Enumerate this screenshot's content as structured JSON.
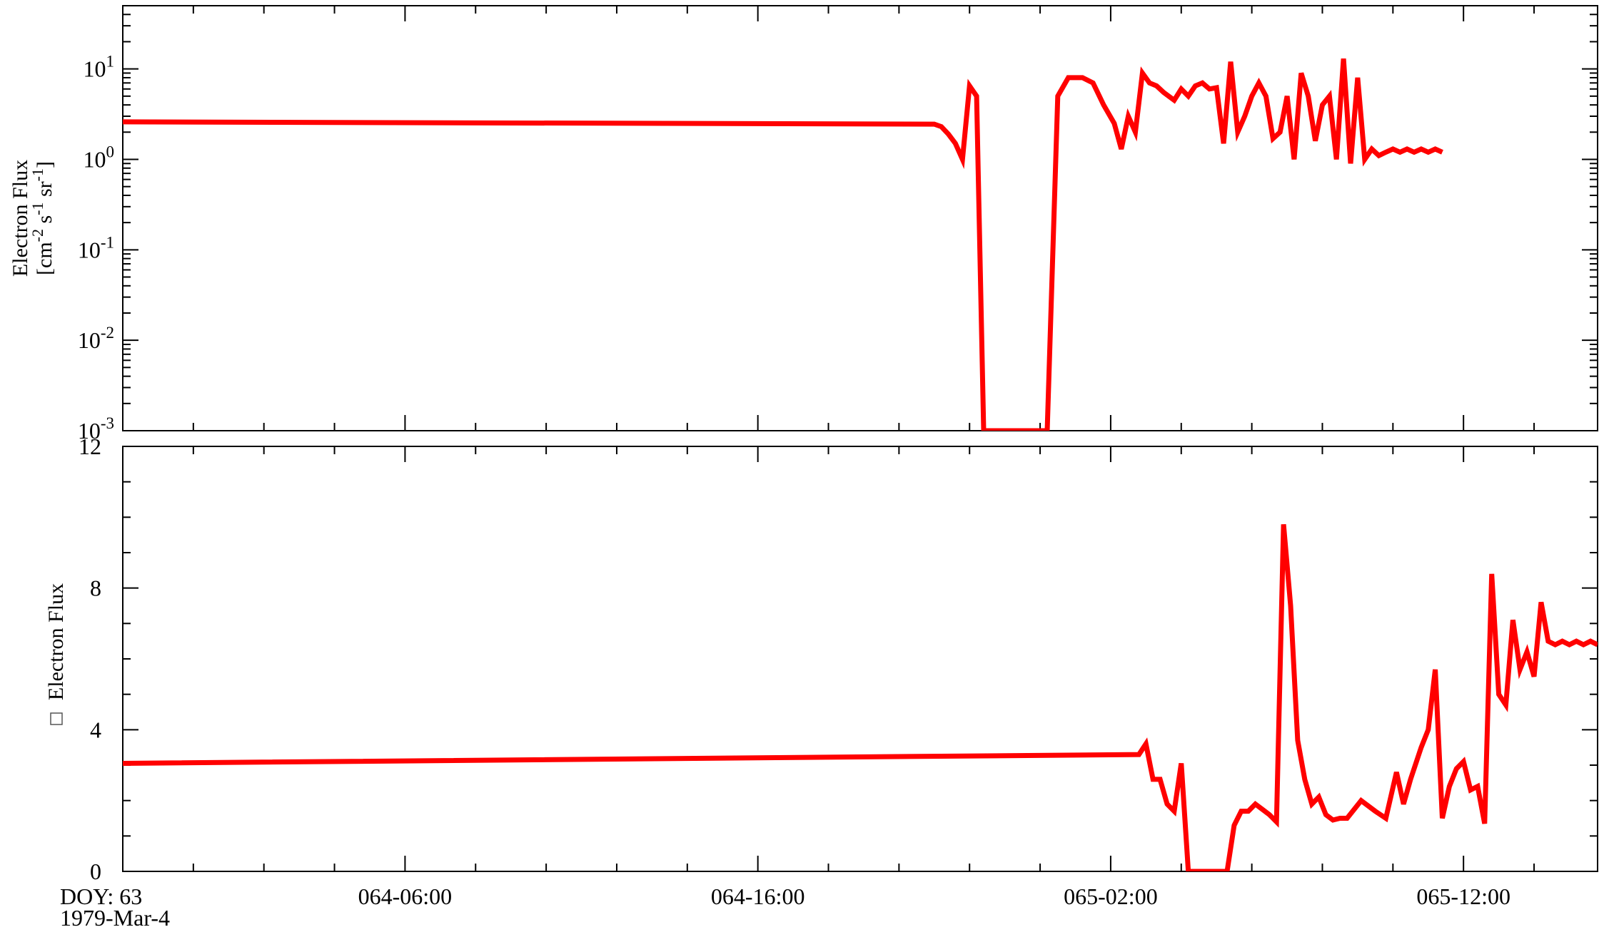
{
  "chart_data": [
    {
      "type": "line",
      "ylabel_line1": "Electron Flux",
      "ylabel_line2_parts": [
        "[cm",
        "-2",
        " s",
        "-1",
        " sr",
        "-1",
        "]"
      ],
      "yscale": "log",
      "ylim": [
        0.001,
        50
      ],
      "ytick_labels": [
        {
          "base": "10",
          "exp": "1"
        },
        {
          "base": "10",
          "exp": "0"
        },
        {
          "base": "10",
          "exp": "-1"
        },
        {
          "base": "10",
          "exp": "-2"
        },
        {
          "base": "10",
          "exp": "-3"
        }
      ],
      "color": "#ff0000",
      "grid": false,
      "series": [
        {
          "x_hours": [
            0,
            23,
            23.2,
            23.4,
            23.6,
            23.8,
            24.0,
            24.2,
            24.4,
            24.5,
            24.8,
            26.0,
            26.2,
            26.5,
            26.8,
            27.2,
            27.5,
            27.8,
            28.1,
            28.3,
            28.5,
            28.7,
            28.9,
            29.1,
            29.3,
            29.5,
            29.8,
            30.0,
            30.2,
            30.4,
            30.6,
            30.8,
            31.0,
            31.2,
            31.4,
            31.6,
            31.8,
            32.0,
            32.2,
            32.4,
            32.6,
            32.8,
            33.0,
            33.2,
            33.4,
            33.6,
            33.8,
            34.0,
            34.2,
            34.4,
            34.6,
            34.8,
            35.0,
            35.2,
            35.4,
            35.6,
            35.8,
            36.0,
            36.2,
            36.4,
            36.6,
            36.8,
            37.0,
            37.2,
            37.4
          ],
          "y": [
            2.6,
            2.45,
            2.3,
            1.9,
            1.5,
            1.0,
            6.5,
            5.0,
            0.001,
            0.001,
            0.001,
            0.001,
            0.001,
            5.0,
            8.0,
            8.0,
            7.0,
            4.0,
            2.5,
            1.3,
            3.0,
            2.0,
            9.0,
            7.0,
            6.5,
            5.5,
            4.5,
            6.0,
            5.0,
            6.5,
            7.0,
            6.0,
            6.2,
            1.5,
            12.0,
            2.0,
            3.0,
            5.0,
            7.0,
            5.0,
            1.7,
            2.0,
            5.0,
            1.0,
            9.0,
            5.0,
            1.6,
            4.0,
            5.0,
            1.0,
            13.0,
            0.9,
            8.0,
            1.0,
            1.3,
            1.1,
            1.2,
            1.3,
            1.2,
            1.3,
            1.2,
            1.3,
            1.2,
            1.3,
            1.2
          ]
        }
      ]
    },
    {
      "type": "line",
      "ylabel": "Electron Flux",
      "ylabel_icon": "missing-glyph-box",
      "ylim": [
        0,
        12
      ],
      "yticks": [
        0,
        4,
        8,
        12
      ],
      "ytick_labels": [
        "0",
        "4",
        "8",
        "12"
      ],
      "xtick_labels": [
        "DOY: 63",
        "064-06:00",
        "064-16:00",
        "065-02:00",
        "065-12:00"
      ],
      "xtick_hours": [
        0,
        8,
        18,
        28,
        38
      ],
      "date_label": "1979-Mar-4",
      "xlim_hours": [
        0,
        41.8
      ],
      "color": "#ff0000",
      "grid": false,
      "series": [
        {
          "x_hours": [
            0,
            28.8,
            29.0,
            29.2,
            29.4,
            29.6,
            29.8,
            30.0,
            30.2,
            30.4,
            31.3,
            31.5,
            31.7,
            31.9,
            32.1,
            32.3,
            32.5,
            32.7,
            32.9,
            33.1,
            33.3,
            33.5,
            33.7,
            33.9,
            34.1,
            34.3,
            34.5,
            34.7,
            35.1,
            35.5,
            35.8,
            36.1,
            36.3,
            36.5,
            36.8,
            37.0,
            37.2,
            37.4,
            37.6,
            37.8,
            38.0,
            38.2,
            38.4,
            38.6,
            38.8,
            39.0,
            39.2,
            39.4,
            39.6,
            39.8,
            40.0,
            40.2,
            40.4,
            40.6,
            40.8,
            41.0,
            41.2,
            41.4,
            41.6,
            41.8
          ],
          "y": [
            3.05,
            3.3,
            3.6,
            2.6,
            2.6,
            1.9,
            1.7,
            3.05,
            0.0,
            0.0,
            0.0,
            1.3,
            1.7,
            1.7,
            1.9,
            1.75,
            1.6,
            1.4,
            9.8,
            7.5,
            3.7,
            2.6,
            1.9,
            2.1,
            1.6,
            1.45,
            1.5,
            1.5,
            2.0,
            1.7,
            1.5,
            2.8,
            1.9,
            2.6,
            3.5,
            4.0,
            5.7,
            1.5,
            2.4,
            2.9,
            3.1,
            2.3,
            2.4,
            1.35,
            8.4,
            5.0,
            4.7,
            7.1,
            5.7,
            6.2,
            5.5,
            7.6,
            6.5,
            6.4,
            6.5,
            6.4,
            6.5,
            6.4,
            6.5,
            6.4
          ]
        }
      ]
    }
  ]
}
